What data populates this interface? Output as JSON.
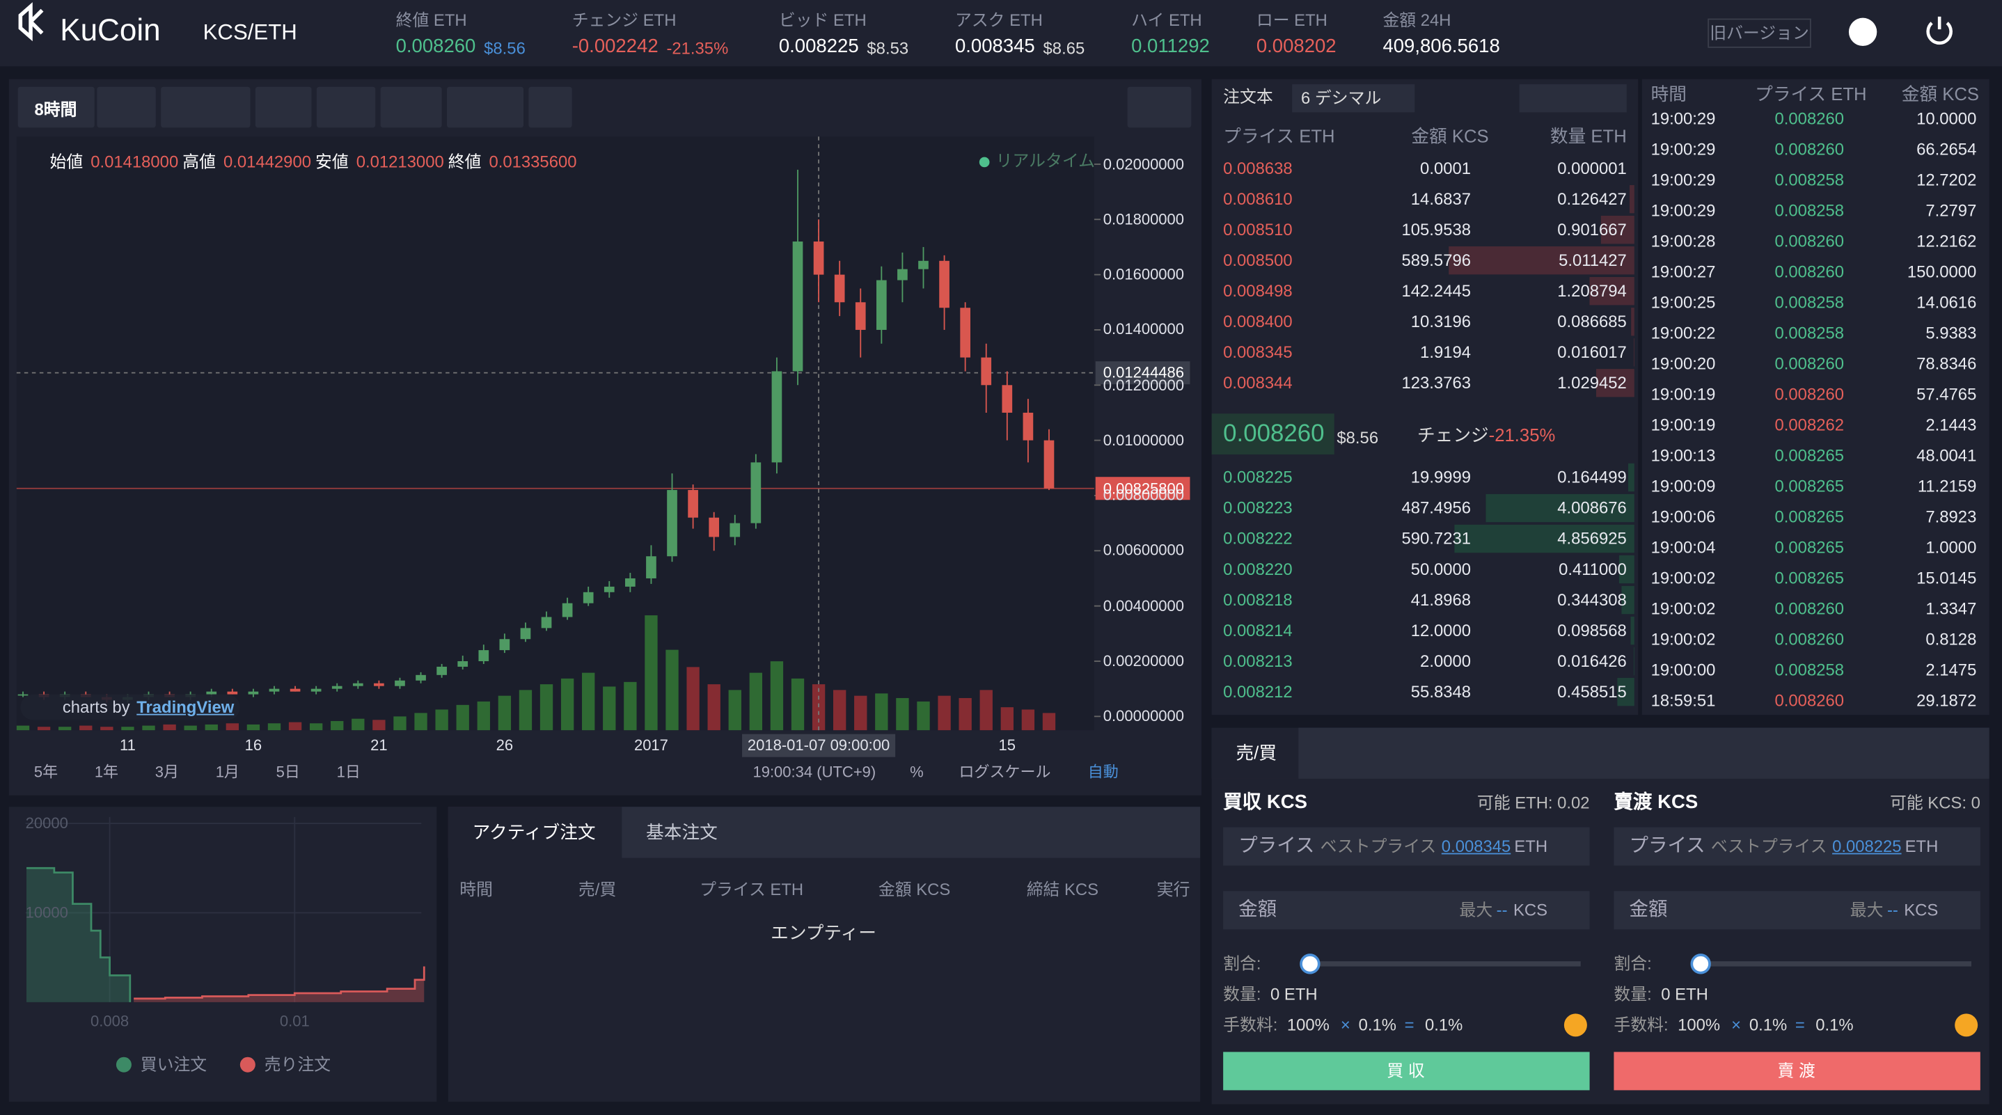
{
  "header": {
    "logo": "KuCoin",
    "pair": "KCS/ETH",
    "stats": [
      {
        "label": "終値 ETH",
        "value": "0.008260",
        "sub": "$8.56"
      },
      {
        "label": "チェンジ ETH",
        "value": "-0.002242",
        "sub": "-21.35%"
      },
      {
        "label": "ビッド ETH",
        "value": "0.008225",
        "sub": "$8.53"
      },
      {
        "label": "アスク ETH",
        "value": "0.008345",
        "sub": "$8.65"
      },
      {
        "label": "ハイ ETH",
        "value": "0.011292"
      },
      {
        "label": "ロー ETH",
        "value": "0.008202"
      },
      {
        "label": "金額 24H",
        "value": "409,806.5618"
      }
    ],
    "old_version": "旧バージョン"
  },
  "chart_data": {
    "type": "candlestick",
    "interval": "8時間",
    "legend": [
      {
        "label": "始値",
        "value": "0.01418000"
      },
      {
        "label": "高値",
        "value": "0.01442900"
      },
      {
        "label": "安値",
        "value": "0.01213000"
      },
      {
        "label": "終値",
        "value": "0.01335600"
      }
    ],
    "realtime": "リアルタイム",
    "ylim": [
      -0.0005,
      0.021
    ],
    "yticks": [
      {
        "value": 0.02,
        "label": "0.02000000"
      },
      {
        "value": 0.018,
        "label": "0.01800000"
      },
      {
        "value": 0.016,
        "label": "0.01600000"
      },
      {
        "value": 0.014,
        "label": "0.01400000"
      },
      {
        "value": 0.012,
        "label": "0.01200000"
      },
      {
        "value": 0.01,
        "label": "0.01000000"
      },
      {
        "value": 0.008,
        "label": "0.00800000"
      },
      {
        "value": 0.006,
        "label": "0.00600000"
      },
      {
        "value": 0.004,
        "label": "0.00400000"
      },
      {
        "value": 0.002,
        "label": "0.00200000"
      },
      {
        "value": 0,
        "label": "0.00000000"
      }
    ],
    "crosshair_price": 0.01244486,
    "last_price": {
      "value": 0.008258,
      "label": "0.00825800"
    },
    "categories": [
      null,
      null,
      null,
      null,
      null,
      "11",
      null,
      null,
      null,
      null,
      null,
      "16",
      null,
      null,
      null,
      null,
      null,
      "21",
      null,
      null,
      null,
      null,
      null,
      "26",
      null,
      null,
      null,
      null,
      null,
      null,
      "2017",
      null,
      null,
      null,
      null,
      null,
      null,
      null,
      "2018-01-07 09:00:00",
      null,
      null,
      null,
      null,
      null,
      null,
      null,
      null,
      "15",
      null,
      null
    ],
    "open": [
      0.0008,
      0.0008,
      0.0007,
      0.0008,
      0.0007,
      0.0006,
      0.0007,
      0.0008,
      0.0007,
      0.0008,
      0.0009,
      0.0008,
      0.0009,
      0.001,
      0.0009,
      0.001,
      0.0011,
      0.0012,
      0.0011,
      0.0013,
      0.0015,
      0.0018,
      0.002,
      0.0024,
      0.0028,
      0.0032,
      0.0036,
      0.0041,
      0.0045,
      0.0047,
      0.005,
      0.0058,
      0.0082,
      0.0072,
      0.0065,
      0.007,
      0.0092,
      0.0125,
      0.0172,
      0.016,
      0.015,
      0.014,
      0.0158,
      0.0162,
      0.0165,
      0.0148,
      0.013,
      0.012,
      0.011,
      0.01
    ],
    "high": [
      0.0009,
      0.0009,
      0.0009,
      0.0009,
      0.0008,
      0.0008,
      0.0009,
      0.0009,
      0.0009,
      0.001,
      0.001,
      0.001,
      0.0011,
      0.0011,
      0.0011,
      0.0012,
      0.0013,
      0.0013,
      0.0014,
      0.0016,
      0.0019,
      0.0022,
      0.0026,
      0.003,
      0.0034,
      0.0038,
      0.0043,
      0.0047,
      0.0049,
      0.0052,
      0.0062,
      0.0088,
      0.0084,
      0.0074,
      0.0073,
      0.0095,
      0.013,
      0.0198,
      0.018,
      0.0165,
      0.0155,
      0.0163,
      0.0168,
      0.017,
      0.0167,
      0.015,
      0.0135,
      0.0125,
      0.0115,
      0.0104
    ],
    "low": [
      0.0007,
      0.0006,
      0.0006,
      0.0007,
      0.0005,
      0.0005,
      0.0006,
      0.0007,
      0.0006,
      0.0007,
      0.0008,
      0.0007,
      0.0008,
      0.0009,
      0.0008,
      0.0009,
      0.001,
      0.001,
      0.001,
      0.0012,
      0.0014,
      0.0017,
      0.0019,
      0.0023,
      0.0027,
      0.0031,
      0.0035,
      0.004,
      0.0043,
      0.0045,
      0.0048,
      0.0056,
      0.0068,
      0.006,
      0.0062,
      0.0068,
      0.0088,
      0.012,
      0.015,
      0.0145,
      0.013,
      0.0135,
      0.015,
      0.0155,
      0.014,
      0.0125,
      0.011,
      0.01,
      0.0092,
      0.0082
    ],
    "close": [
      0.0008,
      0.0007,
      0.0008,
      0.0007,
      0.0006,
      0.0007,
      0.0008,
      0.0007,
      0.0008,
      0.0009,
      0.0008,
      0.0009,
      0.001,
      0.0009,
      0.001,
      0.0011,
      0.0012,
      0.0011,
      0.0013,
      0.0015,
      0.0018,
      0.002,
      0.0024,
      0.0028,
      0.0032,
      0.0036,
      0.0041,
      0.0045,
      0.0047,
      0.005,
      0.0058,
      0.0082,
      0.0072,
      0.0065,
      0.007,
      0.0092,
      0.0125,
      0.0172,
      0.016,
      0.015,
      0.014,
      0.0158,
      0.0162,
      0.0165,
      0.0148,
      0.013,
      0.012,
      0.011,
      0.01,
      0.008258
    ],
    "volume": [
      4,
      3,
      3,
      4,
      3,
      3,
      4,
      5,
      4,
      5,
      6,
      5,
      6,
      7,
      6,
      8,
      10,
      9,
      12,
      15,
      18,
      22,
      25,
      30,
      35,
      40,
      45,
      50,
      38,
      42,
      100,
      70,
      55,
      40,
      35,
      50,
      60,
      45,
      40,
      35,
      30,
      32,
      28,
      25,
      30,
      28,
      35,
      20,
      18,
      15
    ],
    "vlim": [
      0,
      100
    ],
    "colors": {
      "up": "#4f9a63",
      "down": "#d9574f",
      "vol_up": "#2f6a33",
      "vol_down": "#852c32"
    },
    "credit": "charts by",
    "brand": "TradingView",
    "ranges": [
      "5年",
      "1年",
      "3月",
      "1月",
      "5日",
      "1日"
    ],
    "clock": "19:00:34 (UTC+9)",
    "percent": "%",
    "log": "ログスケール",
    "auto": "自動"
  },
  "depth": {
    "xlim": [
      0.00709,
      0.01137
    ],
    "ylim": [
      0,
      22000
    ],
    "yticks": [
      20000,
      10000
    ],
    "xticks": [
      0.008,
      0.01
    ],
    "series": [
      {
        "name": "買い注文",
        "color": "#3d8a66",
        "x": [
          0.0071,
          0.0074,
          0.0076,
          0.0078,
          0.0079,
          0.008,
          0.00822
        ],
        "values": [
          15000,
          14500,
          11000,
          8000,
          5000,
          3000,
          0
        ]
      },
      {
        "name": "売り注文",
        "color": "#d95a5a",
        "x": [
          0.00826,
          0.0086,
          0.009,
          0.0095,
          0.01,
          0.0105,
          0.011,
          0.0113,
          0.0114
        ],
        "values": [
          400,
          500,
          650,
          800,
          1000,
          1200,
          1500,
          2500,
          4000
        ]
      }
    ]
  },
  "orderbook": {
    "title": "注文本",
    "decimals": "6 デシマル",
    "columns": [
      "プライス ETH",
      "金額 KCS",
      "数量 ETH"
    ],
    "asks": [
      [
        "0.008638",
        "0.0001",
        "0.000001"
      ],
      [
        "0.008610",
        "14.6837",
        "0.126427"
      ],
      [
        "0.008510",
        "105.9538",
        "0.901667"
      ],
      [
        "0.008500",
        "589.5796",
        "5.011427"
      ],
      [
        "0.008498",
        "142.2445",
        "1.208794"
      ],
      [
        "0.008400",
        "10.3196",
        "0.086685"
      ],
      [
        "0.008345",
        "1.9194",
        "0.016017"
      ],
      [
        "0.008344",
        "123.3763",
        "1.029452"
      ]
    ],
    "mid": {
      "price": "0.008260",
      "usd": "$8.56",
      "change_label": "チェンジ",
      "change": "-21.35%"
    },
    "bids": [
      [
        "0.008225",
        "19.9999",
        "0.164499"
      ],
      [
        "0.008223",
        "487.4956",
        "4.008676"
      ],
      [
        "0.008222",
        "590.7231",
        "4.856925"
      ],
      [
        "0.008220",
        "50.0000",
        "0.411000"
      ],
      [
        "0.008218",
        "41.8968",
        "0.344308"
      ],
      [
        "0.008214",
        "12.0000",
        "0.098568"
      ],
      [
        "0.008213",
        "2.0000",
        "0.016426"
      ],
      [
        "0.008212",
        "55.8348",
        "0.458515"
      ]
    ]
  },
  "trades": {
    "columns": [
      "時間",
      "プライス ETH",
      "金額 KCS"
    ],
    "rows": [
      {
        "time": "19:00:29",
        "price": "0.008260",
        "amount": "10.0000",
        "color": "#4fc08d"
      },
      {
        "time": "19:00:29",
        "price": "0.008260",
        "amount": "66.2654",
        "color": "#4fc08d"
      },
      {
        "time": "19:00:29",
        "price": "0.008258",
        "amount": "12.7202",
        "color": "#4fc08d"
      },
      {
        "time": "19:00:29",
        "price": "0.008258",
        "amount": "7.2797",
        "color": "#4fc08d"
      },
      {
        "time": "19:00:28",
        "price": "0.008260",
        "amount": "12.2162",
        "color": "#4fc08d"
      },
      {
        "time": "19:00:27",
        "price": "0.008260",
        "amount": "150.0000",
        "color": "#4fc08d"
      },
      {
        "time": "19:00:25",
        "price": "0.008258",
        "amount": "14.0616",
        "color": "#4fc08d"
      },
      {
        "time": "19:00:22",
        "price": "0.008258",
        "amount": "5.9383",
        "color": "#4fc08d"
      },
      {
        "time": "19:00:20",
        "price": "0.008260",
        "amount": "78.8346",
        "color": "#4fc08d"
      },
      {
        "time": "19:00:19",
        "price": "0.008260",
        "amount": "57.4765",
        "color": "#e6605a"
      },
      {
        "time": "19:00:19",
        "price": "0.008262",
        "amount": "2.1443",
        "color": "#e6605a"
      },
      {
        "time": "19:00:13",
        "price": "0.008265",
        "amount": "48.0041",
        "color": "#4fc08d"
      },
      {
        "time": "19:00:09",
        "price": "0.008265",
        "amount": "11.2159",
        "color": "#4fc08d"
      },
      {
        "time": "19:00:06",
        "price": "0.008265",
        "amount": "7.8923",
        "color": "#4fc08d"
      },
      {
        "time": "19:00:04",
        "price": "0.008265",
        "amount": "1.0000",
        "color": "#4fc08d"
      },
      {
        "time": "19:00:02",
        "price": "0.008265",
        "amount": "15.0145",
        "color": "#4fc08d"
      },
      {
        "time": "19:00:02",
        "price": "0.008260",
        "amount": "1.3347",
        "color": "#4fc08d"
      },
      {
        "time": "19:00:02",
        "price": "0.008260",
        "amount": "0.8128",
        "color": "#4fc08d"
      },
      {
        "time": "19:00:00",
        "price": "0.008258",
        "amount": "2.1475",
        "color": "#4fc08d"
      },
      {
        "time": "18:59:51",
        "price": "0.008260",
        "amount": "29.1872",
        "color": "#e6605a"
      }
    ]
  },
  "orders": {
    "tabs": [
      "アクティブ注文",
      "基本注文"
    ],
    "columns": [
      "時間",
      "売/買",
      "プライス ETH",
      "金額 KCS",
      "締結 KCS",
      "実行"
    ],
    "empty": "エンプティー"
  },
  "trade_form": {
    "tab": "売/買",
    "forms": [
      {
        "title": "買収 KCS",
        "available": "可能 ETH: 0.02",
        "price": "プライス",
        "best": "ベストプライス",
        "best_value": "0.008345",
        "price_unit": "ETH",
        "amount": "金額",
        "max": "最大",
        "max_value": "--",
        "amount_unit": "KCS",
        "ratio": "割合:",
        "qty_label": "数量:",
        "qty": "0 ETH",
        "fee_label": "手数料:",
        "fee": [
          "100%",
          "×",
          "0.1%",
          "=",
          "0.1%"
        ],
        "button": "買 収",
        "color": "#5fc99a"
      },
      {
        "title": "賣渡 KCS",
        "available": "可能 KCS: 0",
        "price": "プライス",
        "best": "ベストプライス",
        "best_value": "0.008225",
        "price_unit": "ETH",
        "amount": "金額",
        "max": "最大",
        "max_value": "--",
        "amount_unit": "KCS",
        "ratio": "割合:",
        "qty_label": "数量:",
        "qty": "0 ETH",
        "fee_label": "手数料:",
        "fee": [
          "100%",
          "×",
          "0.1%",
          "=",
          "0.1%"
        ],
        "button": "賣 渡",
        "color": "#ef6a6a"
      }
    ]
  }
}
